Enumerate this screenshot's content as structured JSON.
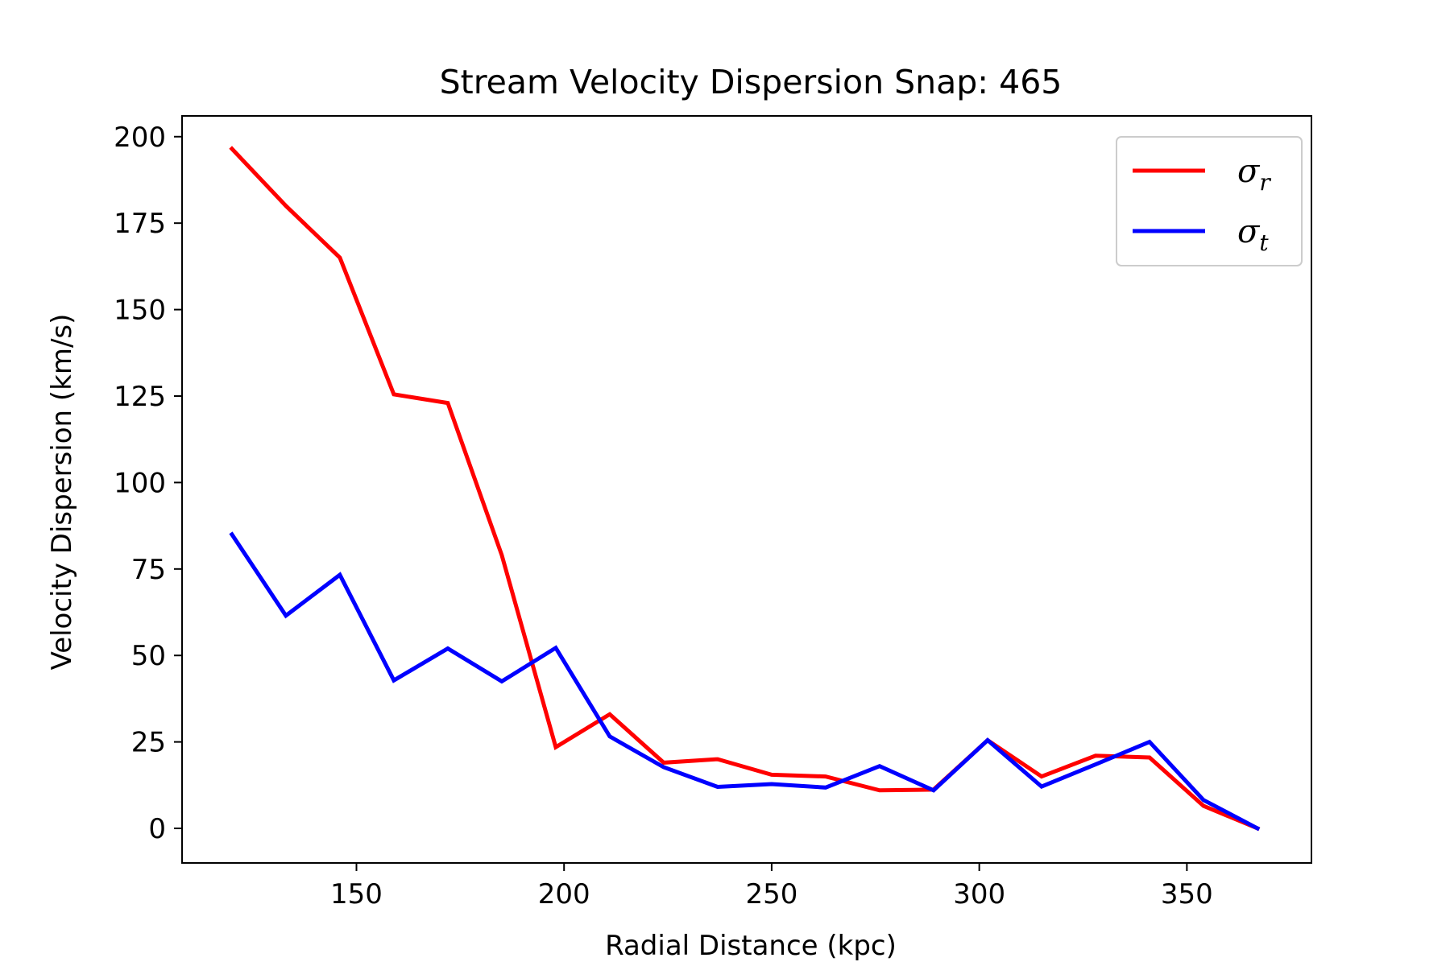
{
  "chart_data": {
    "type": "line",
    "title": "Stream Velocity Dispersion Snap: 465",
    "xlabel": "Radial Distance (kpc)",
    "ylabel": "Velocity Dispersion (km/s)",
    "xlim": [
      108,
      380
    ],
    "ylim": [
      -10,
      206
    ],
    "xticks": [
      150,
      200,
      250,
      300,
      350
    ],
    "yticks": [
      0,
      25,
      50,
      75,
      100,
      125,
      150,
      175,
      200
    ],
    "grid": false,
    "legend_position": "upper right",
    "x": [
      120,
      133,
      146,
      159,
      172,
      185,
      198,
      211,
      224,
      237,
      250,
      263,
      276,
      289,
      302,
      315,
      328,
      341,
      354,
      367
    ],
    "series": [
      {
        "name_base": "σ",
        "name_sub": "r",
        "color": "#ff0000",
        "values": [
          196.5,
          180,
          165,
          125.5,
          123,
          79,
          23.5,
          33,
          19,
          20,
          15.5,
          15,
          11,
          11.2,
          25.5,
          15,
          21,
          20.5,
          6.5,
          0
        ]
      },
      {
        "name_base": "σ",
        "name_sub": "t",
        "color": "#0000ff",
        "values": [
          85,
          61.5,
          73.3,
          42.8,
          52,
          42.5,
          52.2,
          26.6,
          17.7,
          12,
          12.8,
          11.8,
          18,
          11,
          25.5,
          12.1,
          18.5,
          25,
          8.2,
          0
        ]
      }
    ]
  }
}
